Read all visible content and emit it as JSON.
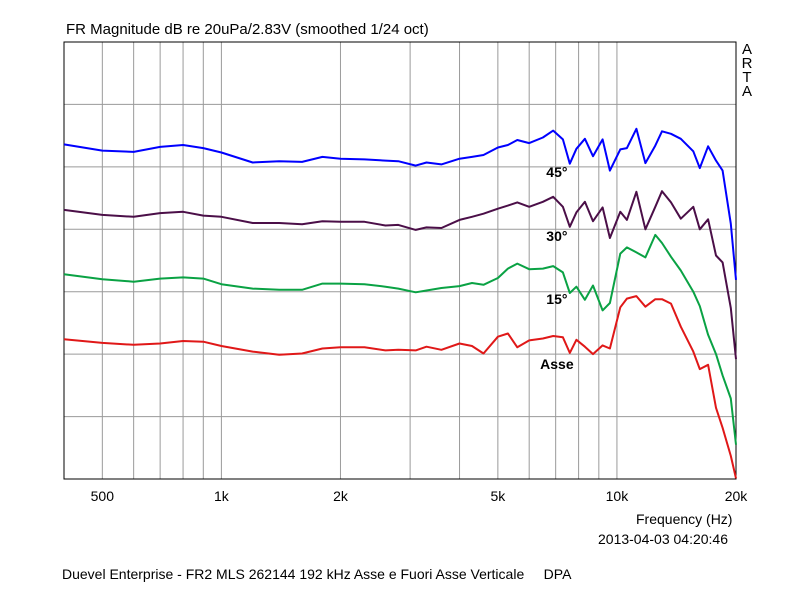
{
  "chart_data": {
    "type": "line",
    "title": "FR Magnitude dB re 20uPa/2.83V (smoothed 1/24 oct)",
    "xlabel": "Frequency (Hz)",
    "ylabel": "",
    "xscale": "log",
    "xlim": [
      400,
      20000
    ],
    "ylim": [
      0,
      7
    ],
    "grid": true,
    "x_ticks": [
      {
        "value": 500,
        "label": "500"
      },
      {
        "value": 1000,
        "label": "1k"
      },
      {
        "value": 2000,
        "label": "2k"
      },
      {
        "value": 5000,
        "label": "5k"
      },
      {
        "value": 10000,
        "label": "10k"
      },
      {
        "value": 20000,
        "label": "20k"
      }
    ],
    "series": [
      {
        "name": "",
        "color": "#0000ff",
        "points": [
          [
            400,
            5.36
          ],
          [
            500,
            5.26
          ],
          [
            600,
            5.24
          ],
          [
            700,
            5.32
          ],
          [
            800,
            5.35
          ],
          [
            900,
            5.3
          ],
          [
            1000,
            5.23
          ],
          [
            1200,
            5.07
          ],
          [
            1400,
            5.09
          ],
          [
            1600,
            5.08
          ],
          [
            1800,
            5.16
          ],
          [
            2000,
            5.13
          ],
          [
            2300,
            5.12
          ],
          [
            2600,
            5.1
          ],
          [
            2800,
            5.09
          ],
          [
            3100,
            5.02
          ],
          [
            3300,
            5.07
          ],
          [
            3600,
            5.04
          ],
          [
            4000,
            5.13
          ],
          [
            4300,
            5.16
          ],
          [
            4600,
            5.19
          ],
          [
            5000,
            5.31
          ],
          [
            5300,
            5.35
          ],
          [
            5600,
            5.43
          ],
          [
            6000,
            5.38
          ],
          [
            6500,
            5.47
          ],
          [
            6900,
            5.58
          ],
          [
            7300,
            5.44
          ],
          [
            7600,
            5.05
          ],
          [
            7900,
            5.29
          ],
          [
            8300,
            5.45
          ],
          [
            8700,
            5.17
          ],
          [
            9200,
            5.44
          ],
          [
            9600,
            4.94
          ],
          [
            10200,
            5.28
          ],
          [
            10600,
            5.3
          ],
          [
            11200,
            5.61
          ],
          [
            11800,
            5.06
          ],
          [
            12500,
            5.34
          ],
          [
            13000,
            5.57
          ],
          [
            13700,
            5.53
          ],
          [
            14500,
            5.45
          ],
          [
            15600,
            5.25
          ],
          [
            16200,
            4.98
          ],
          [
            17000,
            5.33
          ],
          [
            17800,
            5.1
          ],
          [
            18500,
            4.94
          ],
          [
            19400,
            4.09
          ],
          [
            20000,
            3.19
          ]
        ]
      },
      {
        "name": "45°",
        "color": "#4b0f48",
        "points": [
          [
            400,
            4.31
          ],
          [
            500,
            4.23
          ],
          [
            600,
            4.2
          ],
          [
            700,
            4.26
          ],
          [
            800,
            4.28
          ],
          [
            900,
            4.22
          ],
          [
            1000,
            4.2
          ],
          [
            1200,
            4.1
          ],
          [
            1400,
            4.1
          ],
          [
            1600,
            4.08
          ],
          [
            1800,
            4.13
          ],
          [
            2000,
            4.12
          ],
          [
            2300,
            4.12
          ],
          [
            2600,
            4.06
          ],
          [
            2800,
            4.07
          ],
          [
            3100,
            3.99
          ],
          [
            3300,
            4.03
          ],
          [
            3600,
            4.02
          ],
          [
            4000,
            4.15
          ],
          [
            4300,
            4.2
          ],
          [
            4600,
            4.25
          ],
          [
            5000,
            4.33
          ],
          [
            5300,
            4.38
          ],
          [
            5600,
            4.43
          ],
          [
            6000,
            4.36
          ],
          [
            6500,
            4.44
          ],
          [
            6900,
            4.52
          ],
          [
            7300,
            4.36
          ],
          [
            7600,
            4.04
          ],
          [
            7900,
            4.27
          ],
          [
            8300,
            4.44
          ],
          [
            8700,
            4.13
          ],
          [
            9200,
            4.35
          ],
          [
            9600,
            3.86
          ],
          [
            10200,
            4.28
          ],
          [
            10600,
            4.15
          ],
          [
            11200,
            4.6
          ],
          [
            11800,
            4.0
          ],
          [
            12500,
            4.36
          ],
          [
            13000,
            4.61
          ],
          [
            13700,
            4.43
          ],
          [
            14500,
            4.17
          ],
          [
            15600,
            4.36
          ],
          [
            16200,
            4.0
          ],
          [
            17000,
            4.16
          ],
          [
            17800,
            3.58
          ],
          [
            18500,
            3.47
          ],
          [
            19400,
            2.74
          ],
          [
            20000,
            1.92
          ]
        ]
      },
      {
        "name": "30°",
        "color": "#0aa244",
        "points": [
          [
            400,
            3.28
          ],
          [
            500,
            3.2
          ],
          [
            600,
            3.16
          ],
          [
            700,
            3.21
          ],
          [
            800,
            3.23
          ],
          [
            900,
            3.21
          ],
          [
            1000,
            3.12
          ],
          [
            1200,
            3.05
          ],
          [
            1400,
            3.03
          ],
          [
            1600,
            3.03
          ],
          [
            1800,
            3.13
          ],
          [
            2000,
            3.13
          ],
          [
            2300,
            3.12
          ],
          [
            2600,
            3.08
          ],
          [
            2800,
            3.05
          ],
          [
            3100,
            2.99
          ],
          [
            3300,
            3.02
          ],
          [
            3600,
            3.06
          ],
          [
            4000,
            3.09
          ],
          [
            4300,
            3.14
          ],
          [
            4600,
            3.11
          ],
          [
            5000,
            3.22
          ],
          [
            5300,
            3.37
          ],
          [
            5600,
            3.45
          ],
          [
            6000,
            3.36
          ],
          [
            6500,
            3.37
          ],
          [
            6900,
            3.41
          ],
          [
            7300,
            3.31
          ],
          [
            7600,
            2.98
          ],
          [
            7900,
            3.08
          ],
          [
            8300,
            2.87
          ],
          [
            8700,
            3.1
          ],
          [
            9200,
            2.7
          ],
          [
            9600,
            2.82
          ],
          [
            10200,
            3.61
          ],
          [
            10600,
            3.71
          ],
          [
            11200,
            3.63
          ],
          [
            11800,
            3.55
          ],
          [
            12500,
            3.91
          ],
          [
            13000,
            3.78
          ],
          [
            13700,
            3.56
          ],
          [
            14500,
            3.34
          ],
          [
            15600,
            3.0
          ],
          [
            16200,
            2.77
          ],
          [
            17000,
            2.31
          ],
          [
            17800,
            2.0
          ],
          [
            18500,
            1.66
          ],
          [
            19400,
            1.29
          ],
          [
            20000,
            0.55
          ]
        ]
      },
      {
        "name": "Asse",
        "color": "#e01818",
        "points": [
          [
            400,
            2.24
          ],
          [
            500,
            2.18
          ],
          [
            600,
            2.15
          ],
          [
            700,
            2.17
          ],
          [
            800,
            2.21
          ],
          [
            900,
            2.2
          ],
          [
            1000,
            2.13
          ],
          [
            1200,
            2.04
          ],
          [
            1400,
            1.99
          ],
          [
            1600,
            2.01
          ],
          [
            1800,
            2.09
          ],
          [
            2000,
            2.11
          ],
          [
            2300,
            2.11
          ],
          [
            2600,
            2.06
          ],
          [
            2800,
            2.07
          ],
          [
            3100,
            2.06
          ],
          [
            3300,
            2.12
          ],
          [
            3600,
            2.07
          ],
          [
            4000,
            2.17
          ],
          [
            4300,
            2.13
          ],
          [
            4600,
            2.01
          ],
          [
            5000,
            2.28
          ],
          [
            5300,
            2.33
          ],
          [
            5600,
            2.11
          ],
          [
            6000,
            2.22
          ],
          [
            6500,
            2.25
          ],
          [
            6900,
            2.29
          ],
          [
            7300,
            2.27
          ],
          [
            7600,
            2.02
          ],
          [
            7900,
            2.23
          ],
          [
            8300,
            2.12
          ],
          [
            8700,
            2.0
          ],
          [
            9200,
            2.14
          ],
          [
            9600,
            2.09
          ],
          [
            10200,
            2.75
          ],
          [
            10600,
            2.89
          ],
          [
            11200,
            2.93
          ],
          [
            11800,
            2.76
          ],
          [
            12500,
            2.88
          ],
          [
            13000,
            2.88
          ],
          [
            13700,
            2.81
          ],
          [
            14500,
            2.44
          ],
          [
            15600,
            2.04
          ],
          [
            16200,
            1.76
          ],
          [
            17000,
            1.83
          ],
          [
            17800,
            1.14
          ],
          [
            18500,
            0.82
          ],
          [
            19400,
            0.37
          ],
          [
            20000,
            0.01
          ]
        ]
      }
    ],
    "annotations": [
      {
        "text": "45°",
        "x": 7050,
        "y": 4.84
      },
      {
        "text": "30°",
        "x": 7050,
        "y": 3.81
      },
      {
        "text": "15°",
        "x": 7050,
        "y": 2.8
      },
      {
        "text": "Asse",
        "x": 7050,
        "y": 1.76
      }
    ]
  },
  "brand": [
    "A",
    "R",
    "T",
    "A"
  ],
  "timestamp": "2013-04-03  04:20:46",
  "footer": "Duevel Enterprise - FR2 MLS 262144 192 kHz Asse e Fuori Asse Verticale     DPA"
}
